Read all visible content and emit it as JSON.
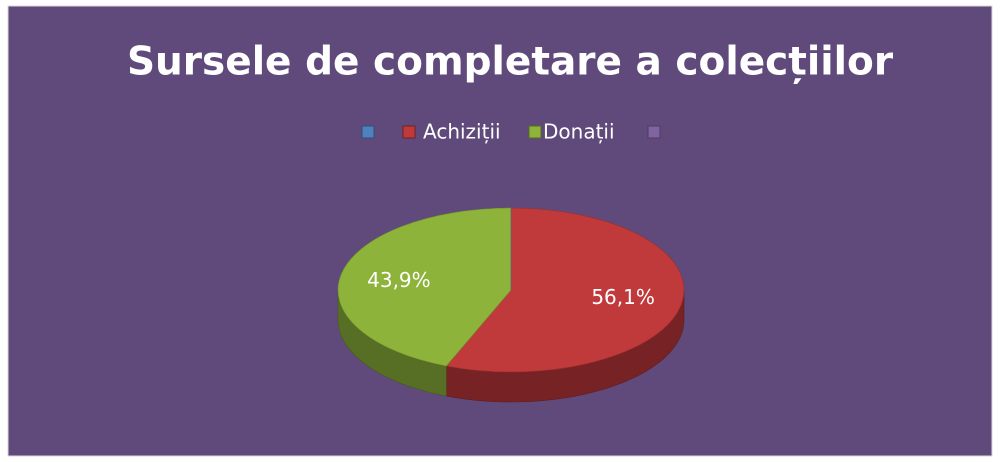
{
  "chart_data": {
    "type": "pie",
    "title": "Sursele de completare a colecțiilor",
    "categories": [
      null,
      "Achiziții",
      "Donații",
      null
    ],
    "values": [
      0,
      56.1,
      43.9,
      0
    ],
    "value_labels": [
      null,
      "56,1%",
      "43,9%",
      null
    ],
    "colors": [
      "#4f81bd",
      "#c0393b",
      "#8db33a",
      "#8064a2"
    ]
  }
}
